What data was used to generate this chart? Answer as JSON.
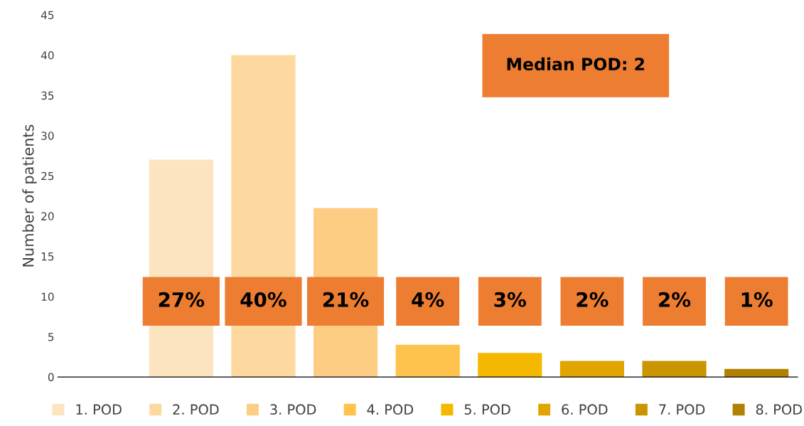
{
  "chart_data": {
    "type": "bar",
    "ylabel": "Number of patients",
    "categories": [
      null,
      null,
      null,
      null,
      null,
      null,
      null,
      null,
      null
    ],
    "series": [
      {
        "name": "1. POD",
        "color": "#fde4c0",
        "values": [
          null,
          27,
          null,
          null,
          null,
          null,
          null,
          null,
          null
        ],
        "value_labels": [
          null,
          "27%",
          null,
          null,
          null,
          null,
          null,
          null,
          null
        ]
      },
      {
        "name": "2. POD",
        "color": "#fdd9a0",
        "values": [
          null,
          null,
          40,
          null,
          null,
          null,
          null,
          null,
          null
        ],
        "value_labels": [
          null,
          null,
          "40%",
          null,
          null,
          null,
          null,
          null,
          null
        ]
      },
      {
        "name": "3. POD",
        "color": "#fdcd84",
        "values": [
          null,
          null,
          null,
          21,
          null,
          null,
          null,
          null,
          null
        ],
        "value_labels": [
          null,
          null,
          null,
          "21%",
          null,
          null,
          null,
          null,
          null
        ]
      },
      {
        "name": "4. POD",
        "color": "#fec34c",
        "values": [
          null,
          null,
          null,
          null,
          4,
          null,
          null,
          null,
          null
        ],
        "value_labels": [
          null,
          null,
          null,
          null,
          "4%",
          null,
          null,
          null,
          null
        ]
      },
      {
        "name": "5. POD",
        "color": "#f5b800",
        "values": [
          null,
          null,
          null,
          null,
          null,
          3,
          null,
          null,
          null
        ],
        "value_labels": [
          null,
          null,
          null,
          null,
          null,
          "3%",
          null,
          null,
          null
        ]
      },
      {
        "name": "6. POD",
        "color": "#e0a500",
        "values": [
          null,
          null,
          null,
          null,
          null,
          null,
          2,
          null,
          null
        ],
        "value_labels": [
          null,
          null,
          null,
          null,
          null,
          null,
          "2%",
          null,
          null
        ]
      },
      {
        "name": "7. POD",
        "color": "#c99600",
        "values": [
          null,
          null,
          null,
          null,
          null,
          null,
          null,
          2,
          null
        ],
        "value_labels": [
          null,
          null,
          null,
          null,
          null,
          null,
          null,
          "2%",
          null
        ]
      },
      {
        "name": "8. POD",
        "color": "#b08000",
        "values": [
          null,
          null,
          null,
          null,
          null,
          null,
          null,
          null,
          1
        ],
        "value_labels": [
          null,
          null,
          null,
          null,
          null,
          null,
          null,
          null,
          "1%"
        ]
      }
    ],
    "ylim": [
      0,
      45
    ],
    "yticks": [
      0,
      5,
      10,
      15,
      20,
      25,
      30,
      35,
      40,
      45
    ],
    "grid": false,
    "legend": "bottom",
    "annotations": [
      "Median POD: 2"
    ]
  }
}
